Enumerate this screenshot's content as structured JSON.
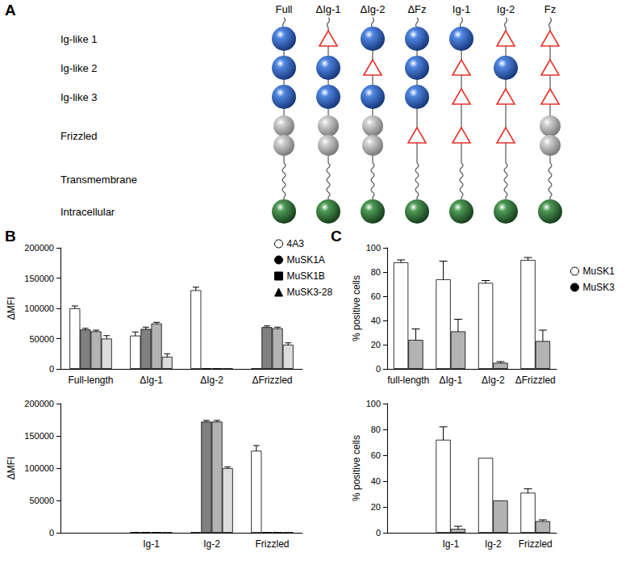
{
  "panel_labels": [
    "A",
    "B",
    "C"
  ],
  "diagram": {
    "rows": [
      "Ig-like 1",
      "Ig-like 2",
      "Ig-like 3",
      "Frizzled",
      "Transmembrane",
      "Intracellular"
    ],
    "columns": [
      {
        "label": "Full",
        "present": [
          true,
          true,
          true,
          true,
          true,
          true
        ]
      },
      {
        "label": "ΔIg-1",
        "present": [
          false,
          true,
          true,
          true,
          true,
          true
        ]
      },
      {
        "label": "ΔIg-2",
        "present": [
          true,
          false,
          true,
          true,
          true,
          true
        ]
      },
      {
        "label": "ΔFz",
        "present": [
          true,
          true,
          true,
          false,
          true,
          true
        ]
      },
      {
        "label": "Ig-1",
        "present": [
          true,
          false,
          false,
          false,
          true,
          true
        ]
      },
      {
        "label": "Ig-2",
        "present": [
          false,
          true,
          false,
          false,
          true,
          true
        ]
      },
      {
        "label": "Fz",
        "present": [
          false,
          false,
          false,
          true,
          true,
          true
        ]
      }
    ]
  },
  "chart_data": [
    {
      "type": "bar",
      "y_label": "ΔMFI",
      "categories": [
        "Full-length",
        "ΔIg-1",
        "ΔIg-2",
        "ΔFrizzled"
      ],
      "ylim": [
        0,
        200000
      ],
      "yticks": [
        0,
        50000,
        100000,
        150000,
        200000
      ],
      "legend": "upper right",
      "series": [
        {
          "name": "4A3",
          "color": "#ffffff",
          "marker": "circle-open",
          "values": [
            100000,
            55000,
            130000,
            500
          ],
          "errors": [
            4000,
            6000,
            5000,
            0
          ]
        },
        {
          "name": "MuSK1A",
          "color": "#808080",
          "marker": "circle",
          "values": [
            65000,
            66000,
            1000,
            69000
          ],
          "errors": [
            2000,
            3000,
            0,
            2000
          ]
        },
        {
          "name": "MuSK1B",
          "color": "#b3b3b3",
          "marker": "square",
          "values": [
            62000,
            75000,
            1000,
            67000
          ],
          "errors": [
            2000,
            2000,
            0,
            2000
          ]
        },
        {
          "name": "MuSK3-28",
          "color": "#dcdcdc",
          "marker": "triangle",
          "values": [
            50000,
            20000,
            500,
            40000
          ],
          "errors": [
            5000,
            5000,
            0,
            3000
          ]
        }
      ]
    },
    {
      "type": "bar",
      "y_label": "ΔMFI",
      "categories": [
        null,
        "Ig-1",
        "Ig-2",
        "Frizzled"
      ],
      "ylim": [
        0,
        200000
      ],
      "yticks": [
        0,
        50000,
        100000,
        150000,
        200000
      ],
      "series": [
        {
          "name": "4A3",
          "color": "#ffffff",
          "values": [
            null,
            1000,
            500,
            127000
          ],
          "errors": [
            null,
            0,
            0,
            8000
          ]
        },
        {
          "name": "MuSK1A",
          "color": "#808080",
          "values": [
            null,
            1000,
            172000,
            1000
          ],
          "errors": [
            null,
            0,
            2000,
            0
          ]
        },
        {
          "name": "MuSK1B",
          "color": "#b3b3b3",
          "values": [
            null,
            1000,
            172000,
            1000
          ],
          "errors": [
            null,
            0,
            2000,
            0
          ]
        },
        {
          "name": "MuSK3-28",
          "color": "#dcdcdc",
          "values": [
            null,
            500,
            100000,
            500
          ],
          "errors": [
            null,
            0,
            2000,
            0
          ]
        }
      ]
    },
    {
      "type": "bar",
      "y_label": "% positive cells",
      "categories": [
        "full-length",
        "ΔIg-1",
        "ΔIg-2",
        "ΔFrizzled"
      ],
      "ylim": [
        0,
        100
      ],
      "yticks": [
        0,
        20,
        40,
        60,
        80,
        100
      ],
      "legend": "right",
      "series": [
        {
          "name": "MuSK1",
          "color": "#ffffff",
          "marker": "circle-open",
          "values": [
            88,
            74,
            71,
            90
          ],
          "errors": [
            2,
            15,
            2,
            2
          ]
        },
        {
          "name": "MuSK3",
          "color": "#b3b3b3",
          "marker": "circle",
          "values": [
            24,
            31,
            5,
            23
          ],
          "errors": [
            9,
            10,
            1,
            9
          ]
        }
      ]
    },
    {
      "type": "bar",
      "y_label": "% positive cells",
      "categories": [
        null,
        "Ig-1",
        "Ig-2",
        "Frizzled"
      ],
      "ylim": [
        0,
        100
      ],
      "yticks": [
        0,
        20,
        40,
        60,
        80,
        100
      ],
      "series": [
        {
          "name": "MuSK1",
          "color": "#ffffff",
          "values": [
            null,
            72,
            58,
            31
          ],
          "errors": [
            null,
            10,
            0,
            3
          ]
        },
        {
          "name": "MuSK3",
          "color": "#b3b3b3",
          "values": [
            null,
            3,
            25,
            9
          ],
          "errors": [
            null,
            2,
            0,
            1
          ]
        }
      ]
    }
  ]
}
